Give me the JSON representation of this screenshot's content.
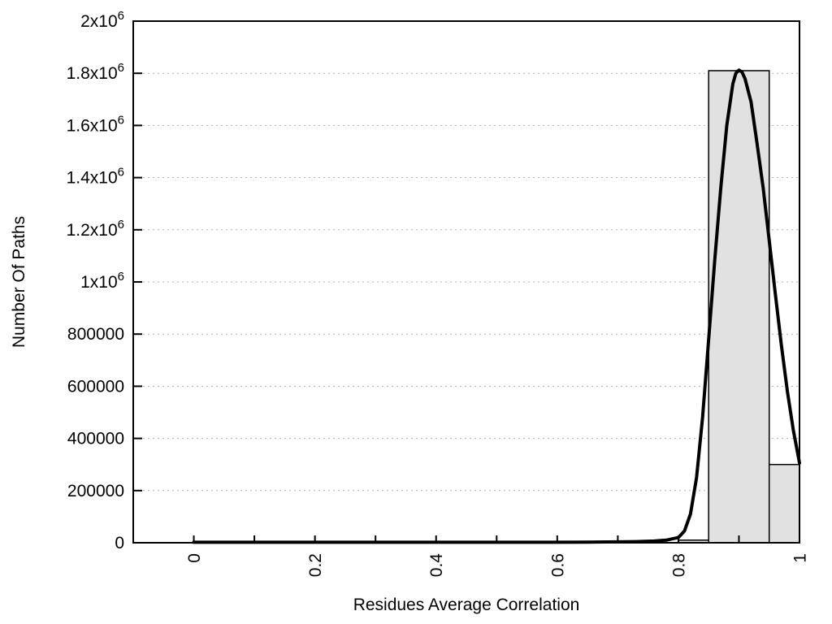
{
  "chart_data": {
    "type": "bar",
    "title": "",
    "xlabel": "Residues Average Correlation",
    "ylabel": "Number Of Paths",
    "xlim": [
      -0.1,
      1.0
    ],
    "ylim": [
      0,
      2000000
    ],
    "grid": "horizontal-dotted",
    "legend": "none",
    "colors": {
      "background": "#ffffff",
      "axis": "#000000",
      "grid": "#b3b3b3",
      "bar_fill": "#e1e1e1",
      "bar_stroke": "#000000",
      "curve": "#000000"
    },
    "x_ticks": [
      {
        "value": 0.0,
        "label": "0"
      },
      {
        "value": 0.1,
        "label": ""
      },
      {
        "value": 0.2,
        "label": "0.2"
      },
      {
        "value": 0.3,
        "label": ""
      },
      {
        "value": 0.4,
        "label": "0.4"
      },
      {
        "value": 0.5,
        "label": ""
      },
      {
        "value": 0.6,
        "label": "0.6"
      },
      {
        "value": 0.7,
        "label": ""
      },
      {
        "value": 0.8,
        "label": "0.8"
      },
      {
        "value": 0.9,
        "label": ""
      },
      {
        "value": 1.0,
        "label": "1"
      }
    ],
    "y_ticks": [
      {
        "value": 0,
        "label": "0"
      },
      {
        "value": 200000,
        "label": "200000"
      },
      {
        "value": 400000,
        "label": "400000"
      },
      {
        "value": 600000,
        "label": "600000"
      },
      {
        "value": 800000,
        "label": "800000"
      },
      {
        "value": 1000000,
        "label": "1x10^6"
      },
      {
        "value": 1200000,
        "label": "1.2x10^6"
      },
      {
        "value": 1400000,
        "label": "1.4x10^6"
      },
      {
        "value": 1600000,
        "label": "1.6x10^6"
      },
      {
        "value": 1800000,
        "label": "1.8x10^6"
      },
      {
        "value": 2000000,
        "label": "2x10^6"
      }
    ],
    "series": [
      {
        "name": "histogram",
        "type": "bins",
        "bins": [
          {
            "x0": 0.8,
            "x1": 0.85,
            "count": 10000
          },
          {
            "x0": 0.85,
            "x1": 0.95,
            "count": 1810000
          },
          {
            "x0": 0.95,
            "x1": 1.0,
            "count": 300000
          }
        ]
      },
      {
        "name": "gaussian-fit",
        "type": "line",
        "points": [
          [
            0.0,
            2000
          ],
          [
            0.05,
            2000
          ],
          [
            0.1,
            2000
          ],
          [
            0.15,
            2000
          ],
          [
            0.2,
            2000
          ],
          [
            0.25,
            2000
          ],
          [
            0.3,
            2000
          ],
          [
            0.35,
            2000
          ],
          [
            0.4,
            2000
          ],
          [
            0.45,
            2000
          ],
          [
            0.5,
            2000
          ],
          [
            0.55,
            2000
          ],
          [
            0.6,
            2000
          ],
          [
            0.65,
            2500
          ],
          [
            0.7,
            3500
          ],
          [
            0.73,
            4500
          ],
          [
            0.76,
            6500
          ],
          [
            0.78,
            10000
          ],
          [
            0.8,
            20000
          ],
          [
            0.81,
            45000
          ],
          [
            0.82,
            110000
          ],
          [
            0.83,
            250000
          ],
          [
            0.84,
            480000
          ],
          [
            0.85,
            780000
          ],
          [
            0.86,
            1080000
          ],
          [
            0.87,
            1360000
          ],
          [
            0.88,
            1600000
          ],
          [
            0.89,
            1760000
          ],
          [
            0.895,
            1800000
          ],
          [
            0.9,
            1812000
          ],
          [
            0.905,
            1805000
          ],
          [
            0.91,
            1780000
          ],
          [
            0.92,
            1690000
          ],
          [
            0.93,
            1530000
          ],
          [
            0.94,
            1360000
          ],
          [
            0.95,
            1160000
          ],
          [
            0.96,
            955000
          ],
          [
            0.97,
            760000
          ],
          [
            0.98,
            580000
          ],
          [
            0.99,
            430000
          ],
          [
            1.0,
            306000
          ]
        ]
      }
    ]
  }
}
